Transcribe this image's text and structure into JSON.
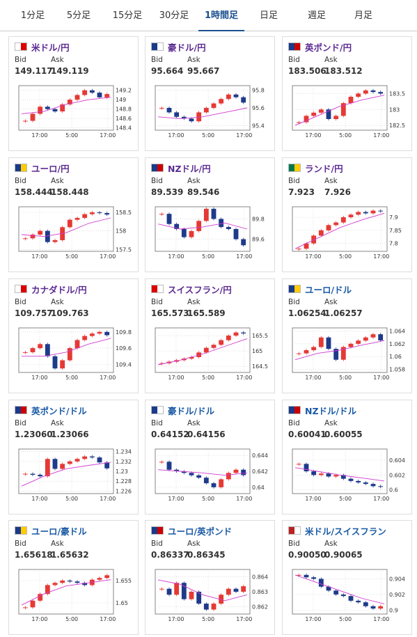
{
  "tabs": [
    "1分足",
    "5分足",
    "15分足",
    "30分足",
    "1時間足",
    "日足",
    "週足",
    "月足"
  ],
  "active_tab": 4,
  "labels": {
    "bid": "Bid",
    "ask": "Ask"
  },
  "cards": [
    {
      "name": "米ドル/円",
      "name_color": "#5b2a91",
      "bid": "149.117",
      "ask": "149.119",
      "chart": {
        "ylim": [
          148.35,
          149.3
        ],
        "yticks": [
          149.2,
          149,
          148.8,
          148.6,
          148.4
        ],
        "xlabels": [
          "17:00",
          "5:00",
          "17:00"
        ],
        "closes": [
          148.55,
          148.7,
          148.85,
          148.8,
          148.75,
          148.9,
          149.0,
          149.1,
          149.2,
          149.15,
          149.05,
          149.12
        ],
        "ma": [
          148.7,
          148.75,
          148.9,
          149.0,
          149.05
        ]
      }
    },
    {
      "name": "豪ドル/円",
      "name_color": "#5b2a91",
      "bid": "95.664",
      "ask": "95.667",
      "chart": {
        "ylim": [
          95.35,
          95.85
        ],
        "yticks": [
          95.8,
          95.6,
          95.4
        ],
        "xlabels": [
          "17:00",
          "5:00",
          "17:00"
        ],
        "closes": [
          95.6,
          95.55,
          95.5,
          95.48,
          95.45,
          95.55,
          95.6,
          95.65,
          95.7,
          95.75,
          95.72,
          95.66
        ],
        "ma": [
          95.5,
          95.48,
          95.5,
          95.55,
          95.6
        ]
      }
    },
    {
      "name": "英ポンド/円",
      "name_color": "#5b2a91",
      "bid": "183.506",
      "ask": "183.512",
      "chart": {
        "ylim": [
          182.35,
          183.75
        ],
        "yticks": [
          183.5,
          183,
          182.5
        ],
        "xlabels": [
          "17:00",
          "5:00",
          "17:00"
        ],
        "closes": [
          182.6,
          182.8,
          182.9,
          183.0,
          182.7,
          182.8,
          183.2,
          183.4,
          183.5,
          183.6,
          183.55,
          183.5
        ],
        "ma": [
          182.5,
          182.8,
          183.1,
          183.3,
          183.45
        ]
      }
    },
    {
      "name": "ユーロ/円",
      "name_color": "#5b2a91",
      "bid": "158.444",
      "ask": "158.448",
      "chart": {
        "ylim": [
          157.45,
          158.65
        ],
        "yticks": [
          158.5,
          158,
          157.5
        ],
        "xlabels": [
          "17:00",
          "5:00",
          "17:00"
        ],
        "closes": [
          157.8,
          157.9,
          158.0,
          157.7,
          157.75,
          158.1,
          158.3,
          158.35,
          158.45,
          158.5,
          158.48,
          158.44
        ],
        "ma": [
          157.9,
          157.85,
          157.95,
          158.2,
          158.35
        ]
      }
    },
    {
      "name": "NZドル/円",
      "name_color": "#5b2a91",
      "bid": "89.539",
      "ask": "89.546",
      "chart": {
        "ylim": [
          89.48,
          89.92
        ],
        "yticks": [
          89.8,
          89.6
        ],
        "xlabels": [
          "17:00",
          "5:00",
          "17:00"
        ],
        "closes": [
          89.85,
          89.75,
          89.7,
          89.62,
          89.68,
          89.78,
          89.9,
          89.8,
          89.72,
          89.7,
          89.6,
          89.54
        ],
        "ma": [
          89.75,
          89.7,
          89.72,
          89.76,
          89.7
        ]
      }
    },
    {
      "name": "ランド/円",
      "name_color": "#5b2a91",
      "bid": "7.923",
      "ask": "7.926",
      "chart": {
        "ylim": [
          7.77,
          7.94
        ],
        "yticks": [
          7.9,
          7.85,
          7.8
        ],
        "xlabels": [
          "17:00",
          "5:00",
          "17:00"
        ],
        "closes": [
          7.78,
          7.8,
          7.83,
          7.85,
          7.87,
          7.88,
          7.9,
          7.91,
          7.92,
          7.915,
          7.925,
          7.923
        ],
        "ma": [
          7.78,
          7.82,
          7.86,
          7.89,
          7.915
        ]
      }
    },
    {
      "name": "カナダドル/円",
      "name_color": "#5b2a91",
      "bid": "109.757",
      "ask": "109.763",
      "chart": {
        "ylim": [
          109.3,
          109.85
        ],
        "yticks": [
          109.8,
          109.6,
          109.4
        ],
        "xlabels": [
          "17:00",
          "5:00",
          "17:00"
        ],
        "closes": [
          109.55,
          109.6,
          109.65,
          109.5,
          109.35,
          109.45,
          109.6,
          109.7,
          109.75,
          109.78,
          109.8,
          109.76
        ],
        "ma": [
          109.5,
          109.5,
          109.55,
          109.65,
          109.72
        ]
      }
    },
    {
      "name": "スイスフラン/円",
      "name_color": "#5b2a91",
      "bid": "165.573",
      "ask": "165.589",
      "chart": {
        "ylim": [
          164.3,
          165.75
        ],
        "yticks": [
          165.5,
          165,
          164.5
        ],
        "xlabels": [
          "17:00",
          "5:00",
          "17:00"
        ],
        "closes": [
          164.6,
          164.65,
          164.7,
          164.75,
          164.8,
          164.95,
          165.1,
          165.2,
          165.35,
          165.5,
          165.6,
          165.57
        ],
        "ma": [
          164.55,
          164.7,
          164.9,
          165.15,
          165.4
        ]
      }
    },
    {
      "name": "ユーロ/ドル",
      "name_color": "#1a5aa6",
      "bid": "1.06254",
      "ask": "1.06257",
      "chart": {
        "ylim": [
          1.0575,
          1.0645
        ],
        "yticks": [
          1.064,
          1.062,
          1.06,
          1.058
        ],
        "xlabels": [
          "17:00",
          "5:00",
          "17:00"
        ],
        "closes": [
          1.0605,
          1.061,
          1.0615,
          1.063,
          1.0612,
          1.0595,
          1.0615,
          1.062,
          1.0625,
          1.063,
          1.0635,
          1.06254
        ],
        "ma": [
          1.0595,
          1.0605,
          1.061,
          1.0618,
          1.0625
        ]
      }
    },
    {
      "name": "英ポンド/ドル",
      "name_color": "#1a5aa6",
      "bid": "1.23060",
      "ask": "1.23066",
      "chart": {
        "ylim": [
          1.2255,
          1.2345
        ],
        "yticks": [
          1.234,
          1.232,
          1.23,
          1.228,
          1.226
        ],
        "xlabels": [
          "17:00",
          "5:00",
          "17:00"
        ],
        "closes": [
          1.2295,
          1.2293,
          1.229,
          1.2325,
          1.2305,
          1.2315,
          1.232,
          1.2325,
          1.233,
          1.2328,
          1.2318,
          1.2306
        ],
        "ma": [
          1.227,
          1.229,
          1.2305,
          1.2312,
          1.2318
        ]
      }
    },
    {
      "name": "豪ドル/ドル",
      "name_color": "#1a5aa6",
      "bid": "0.64152",
      "ask": "0.64156",
      "chart": {
        "ylim": [
          0.6392,
          0.6448
        ],
        "yticks": [
          0.644,
          0.642,
          0.64
        ],
        "xlabels": [
          "17:00",
          "5:00",
          "17:00"
        ],
        "closes": [
          0.6432,
          0.6422,
          0.642,
          0.6418,
          0.6415,
          0.6412,
          0.6405,
          0.64,
          0.641,
          0.6418,
          0.6422,
          0.64152
        ],
        "ma": [
          0.6422,
          0.642,
          0.6418,
          0.6415,
          0.6418
        ]
      }
    },
    {
      "name": "NZドル/ドル",
      "name_color": "#1a5aa6",
      "bid": "0.60041",
      "ask": "0.60055",
      "chart": {
        "ylim": [
          0.5995,
          0.6055
        ],
        "yticks": [
          0.604,
          0.602,
          0.6
        ],
        "xlabels": [
          "17:00",
          "5:00",
          "17:00"
        ],
        "closes": [
          0.6035,
          0.6025,
          0.602,
          0.6022,
          0.6018,
          0.602,
          0.6015,
          0.6012,
          0.601,
          0.6008,
          0.6005,
          0.6004
        ],
        "ma": [
          0.603,
          0.6025,
          0.602,
          0.6016,
          0.6012
        ]
      }
    },
    {
      "name": "ユーロ/豪ドル",
      "name_color": "#1a5aa6",
      "bid": "1.65618",
      "ask": "1.65632",
      "chart": {
        "ylim": [
          1.6475,
          1.6575
        ],
        "yticks": [
          1.655,
          1.65
        ],
        "xlabels": [
          "17:00",
          "5:00",
          "17:00"
        ],
        "closes": [
          1.649,
          1.6505,
          1.652,
          1.654,
          1.6545,
          1.655,
          1.6548,
          1.6545,
          1.654,
          1.6552,
          1.6556,
          1.6562
        ],
        "ma": [
          1.6495,
          1.652,
          1.6538,
          1.6545,
          1.6552
        ]
      }
    },
    {
      "name": "ユーロ/英ポンド",
      "name_color": "#1a5aa6",
      "bid": "0.86337",
      "ask": "0.86345",
      "chart": {
        "ylim": [
          0.8615,
          0.8645
        ],
        "yticks": [
          0.864,
          0.863,
          0.862
        ],
        "xlabels": [
          "17:00",
          "5:00",
          "17:00"
        ],
        "closes": [
          0.8632,
          0.8628,
          0.8636,
          0.8625,
          0.863,
          0.8622,
          0.8618,
          0.8622,
          0.8628,
          0.8632,
          0.863,
          0.86337
        ],
        "ma": [
          0.8638,
          0.8635,
          0.8628,
          0.8624,
          0.8628
        ]
      }
    },
    {
      "name": "米ドル/スイスフラン",
      "name_color": "#1a5aa6",
      "bid": "0.90050",
      "ask": "0.90065",
      "chart": {
        "ylim": [
          0.8995,
          0.9052
        ],
        "yticks": [
          0.904,
          0.902,
          0.9
        ],
        "xlabels": [
          "17:00",
          "5:00",
          "17:00"
        ],
        "closes": [
          0.9045,
          0.9042,
          0.904,
          0.903,
          0.9025,
          0.902,
          0.9018,
          0.9012,
          0.901,
          0.9005,
          0.9002,
          0.9005
        ],
        "ma": [
          0.9045,
          0.9035,
          0.9025,
          0.9015,
          0.9008
        ]
      }
    }
  ]
}
